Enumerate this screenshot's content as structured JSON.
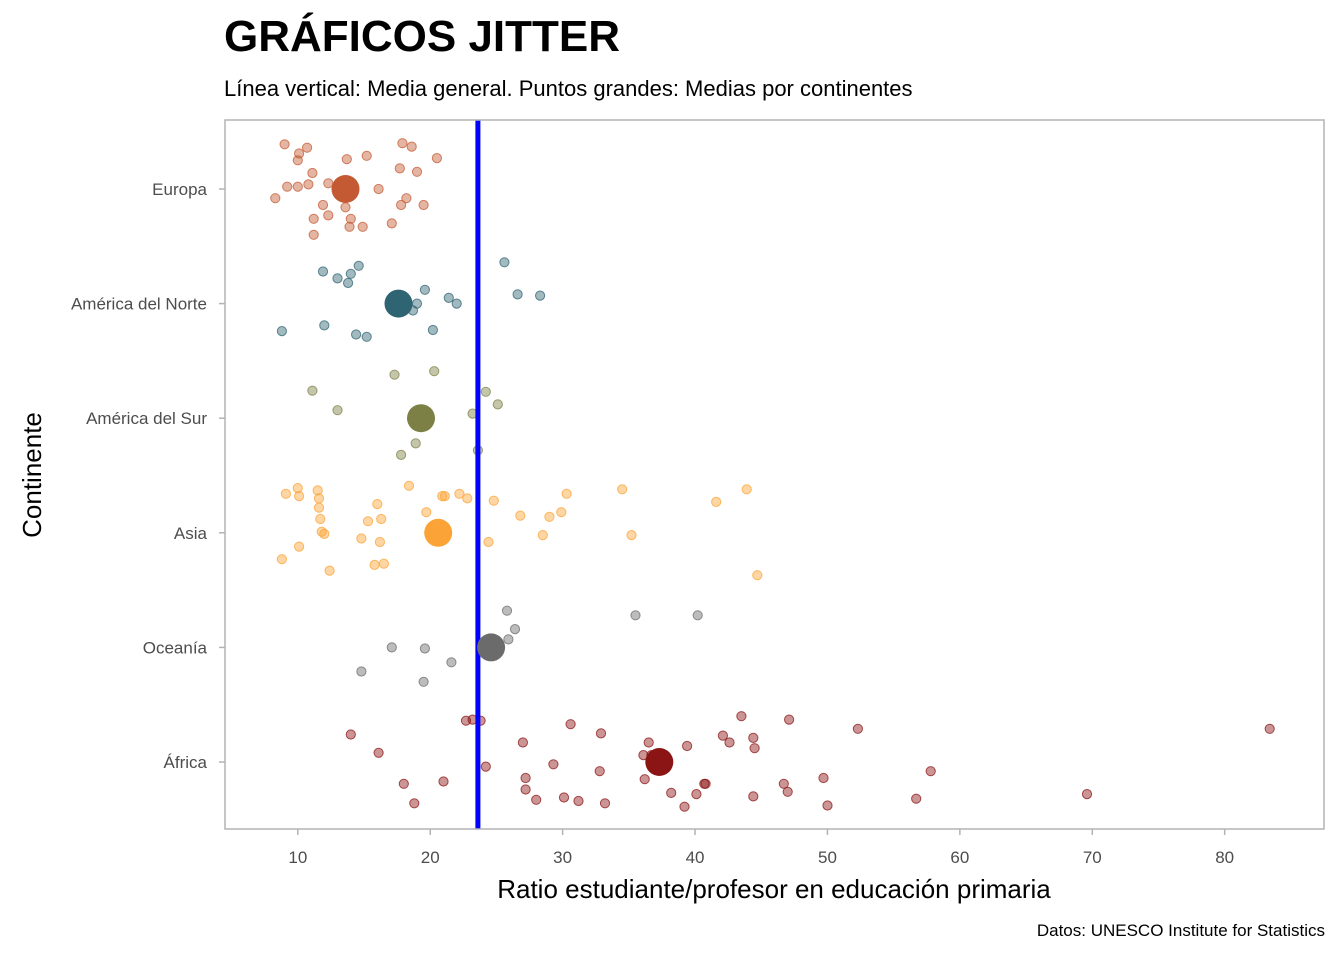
{
  "chart_data": {
    "type": "scatter",
    "title": "GRÁFICOS JITTER",
    "subtitle": "Línea vertical: Media general. Puntos grandes: Medias por continentes",
    "caption": "Datos: UNESCO Institute for Statistics",
    "xlabel": "Ratio estudiante/profesor en educación primaria",
    "ylabel": "Continente",
    "xlim": [
      4.5,
      87.5
    ],
    "x_ticks": [
      10,
      20,
      30,
      40,
      50,
      60,
      70,
      80
    ],
    "categories": [
      "Europa",
      "América del Norte",
      "América del Sur",
      "Asia",
      "Oceanía",
      "África"
    ],
    "overall_mean": 23.6,
    "overall_mean_color": "#0000ff",
    "grid": false,
    "legend": "none",
    "series": [
      {
        "category": "Europa",
        "color": "#c45a33",
        "mean": 13.6,
        "points": [
          [
            9.0,
            0.39
          ],
          [
            10.7,
            0.36
          ],
          [
            17.9,
            0.4
          ],
          [
            18.6,
            0.37
          ],
          [
            10.1,
            0.31
          ],
          [
            10.0,
            0.25
          ],
          [
            13.7,
            0.26
          ],
          [
            15.2,
            0.29
          ],
          [
            20.5,
            0.27
          ],
          [
            17.7,
            0.18
          ],
          [
            19.0,
            0.15
          ],
          [
            11.1,
            0.14
          ],
          [
            12.3,
            0.05
          ],
          [
            9.2,
            0.02
          ],
          [
            10.0,
            0.02
          ],
          [
            10.8,
            0.04
          ],
          [
            8.3,
            -0.08
          ],
          [
            16.1,
            0.0
          ],
          [
            18.2,
            -0.08
          ],
          [
            17.8,
            -0.14
          ],
          [
            19.5,
            -0.14
          ],
          [
            11.9,
            -0.14
          ],
          [
            13.6,
            -0.16
          ],
          [
            14.0,
            -0.26
          ],
          [
            11.2,
            -0.26
          ],
          [
            12.3,
            -0.23
          ],
          [
            13.9,
            -0.33
          ],
          [
            14.9,
            -0.33
          ],
          [
            17.1,
            -0.3
          ],
          [
            11.2,
            -0.4
          ]
        ]
      },
      {
        "category": "América del Norte",
        "color": "#2f6472",
        "mean": 17.6,
        "points": [
          [
            25.6,
            0.36
          ],
          [
            14.6,
            0.33
          ],
          [
            11.9,
            0.28
          ],
          [
            14.0,
            0.26
          ],
          [
            13.0,
            0.22
          ],
          [
            13.8,
            0.18
          ],
          [
            19.6,
            0.12
          ],
          [
            26.6,
            0.08
          ],
          [
            28.3,
            0.07
          ],
          [
            21.4,
            0.05
          ],
          [
            22.0,
            0.0
          ],
          [
            19.0,
            0.0
          ],
          [
            18.7,
            -0.06
          ],
          [
            12.0,
            -0.19
          ],
          [
            20.2,
            -0.23
          ],
          [
            8.8,
            -0.24
          ],
          [
            14.4,
            -0.27
          ],
          [
            15.2,
            -0.29
          ]
        ]
      },
      {
        "category": "América del Sur",
        "color": "#7d8044",
        "mean": 19.3,
        "points": [
          [
            20.3,
            0.41
          ],
          [
            17.3,
            0.38
          ],
          [
            11.1,
            0.24
          ],
          [
            24.2,
            0.23
          ],
          [
            25.1,
            0.12
          ],
          [
            13.0,
            0.07
          ],
          [
            23.2,
            0.04
          ],
          [
            18.9,
            -0.22
          ],
          [
            23.6,
            -0.28
          ],
          [
            17.8,
            -0.32
          ]
        ]
      },
      {
        "category": "Asia",
        "color": "#fba336",
        "mean": 20.6,
        "points": [
          [
            10.0,
            0.39
          ],
          [
            9.1,
            0.34
          ],
          [
            11.5,
            0.37
          ],
          [
            10.1,
            0.32
          ],
          [
            18.4,
            0.41
          ],
          [
            20.9,
            0.32
          ],
          [
            21.1,
            0.32
          ],
          [
            22.2,
            0.34
          ],
          [
            22.8,
            0.3
          ],
          [
            24.8,
            0.28
          ],
          [
            30.3,
            0.34
          ],
          [
            34.5,
            0.38
          ],
          [
            41.6,
            0.27
          ],
          [
            43.9,
            0.38
          ],
          [
            11.6,
            0.3
          ],
          [
            16.0,
            0.25
          ],
          [
            11.6,
            0.22
          ],
          [
            19.7,
            0.18
          ],
          [
            26.8,
            0.15
          ],
          [
            29.0,
            0.14
          ],
          [
            29.9,
            0.18
          ],
          [
            11.7,
            0.12
          ],
          [
            15.3,
            0.1
          ],
          [
            16.3,
            0.12
          ],
          [
            11.8,
            0.01
          ],
          [
            12.0,
            -0.01
          ],
          [
            14.8,
            -0.05
          ],
          [
            20.5,
            -0.01
          ],
          [
            28.5,
            -0.02
          ],
          [
            35.2,
            -0.02
          ],
          [
            16.2,
            -0.08
          ],
          [
            24.4,
            -0.08
          ],
          [
            10.1,
            -0.12
          ],
          [
            8.8,
            -0.23
          ],
          [
            16.5,
            -0.27
          ],
          [
            15.8,
            -0.28
          ],
          [
            12.4,
            -0.33
          ],
          [
            44.7,
            -0.37
          ]
        ]
      },
      {
        "category": "Oceanía",
        "color": "#6b6b6b",
        "mean": 24.6,
        "points": [
          [
            25.8,
            0.32
          ],
          [
            35.5,
            0.28
          ],
          [
            40.2,
            0.28
          ],
          [
            26.4,
            0.16
          ],
          [
            25.9,
            0.07
          ],
          [
            17.1,
            0.0
          ],
          [
            19.6,
            -0.01
          ],
          [
            21.6,
            -0.13
          ],
          [
            14.8,
            -0.21
          ],
          [
            19.5,
            -0.3
          ]
        ]
      },
      {
        "category": "África",
        "color": "#8b1515",
        "mean": 37.3,
        "points": [
          [
            43.5,
            0.4
          ],
          [
            47.1,
            0.37
          ],
          [
            23.2,
            0.37
          ],
          [
            22.7,
            0.36
          ],
          [
            23.8,
            0.36
          ],
          [
            30.6,
            0.33
          ],
          [
            52.3,
            0.29
          ],
          [
            83.4,
            0.29
          ],
          [
            14.0,
            0.24
          ],
          [
            32.9,
            0.25
          ],
          [
            42.1,
            0.23
          ],
          [
            44.4,
            0.21
          ],
          [
            27.0,
            0.17
          ],
          [
            36.5,
            0.17
          ],
          [
            39.4,
            0.14
          ],
          [
            42.6,
            0.17
          ],
          [
            44.5,
            0.12
          ],
          [
            16.1,
            0.08
          ],
          [
            36.7,
            0.06
          ],
          [
            36.1,
            0.06
          ],
          [
            24.2,
            -0.04
          ],
          [
            29.3,
            -0.02
          ],
          [
            32.8,
            -0.08
          ],
          [
            57.8,
            -0.08
          ],
          [
            27.2,
            -0.14
          ],
          [
            36.2,
            -0.15
          ],
          [
            40.8,
            -0.19
          ],
          [
            40.7,
            -0.19
          ],
          [
            46.7,
            -0.19
          ],
          [
            49.7,
            -0.14
          ],
          [
            21.0,
            -0.17
          ],
          [
            18.0,
            -0.19
          ],
          [
            27.2,
            -0.24
          ],
          [
            38.2,
            -0.27
          ],
          [
            40.1,
            -0.28
          ],
          [
            44.4,
            -0.3
          ],
          [
            47.0,
            -0.26
          ],
          [
            69.6,
            -0.28
          ],
          [
            28.0,
            -0.33
          ],
          [
            31.2,
            -0.34
          ],
          [
            56.7,
            -0.32
          ],
          [
            18.8,
            -0.36
          ],
          [
            33.2,
            -0.36
          ],
          [
            39.2,
            -0.39
          ],
          [
            50.0,
            -0.38
          ],
          [
            30.1,
            -0.31
          ]
        ]
      }
    ]
  }
}
